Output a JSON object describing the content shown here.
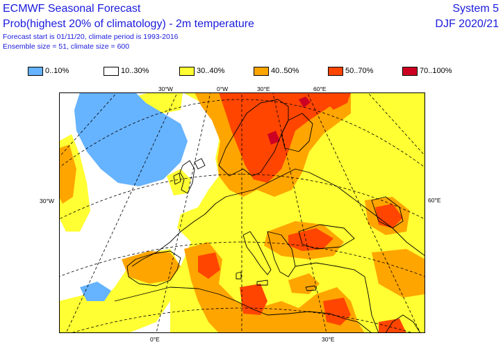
{
  "header": {
    "title": "ECMWF Seasonal Forecast",
    "subtitle": "Prob(highest 20% of climatology) - 2m temperature",
    "forecast_info": "Forecast start is 01/11/20, climate period is 1993-2016",
    "ensemble_info": "Ensemble size = 51, climate size = 600",
    "system": "System 5",
    "season": "DJF 2020/21"
  },
  "legend": [
    {
      "label": "0..10%",
      "color": "#66b3ff"
    },
    {
      "label": "10..30%",
      "color": "#ffffff"
    },
    {
      "label": "30..40%",
      "color": "#ffff33"
    },
    {
      "label": "40..50%",
      "color": "#ffa500"
    },
    {
      "label": "50..70%",
      "color": "#ff4500"
    },
    {
      "label": "70..100%",
      "color": "#cc0022"
    }
  ],
  "map": {
    "ticks": {
      "top": [
        "30°W",
        "0°W",
        "30°E",
        "60°E"
      ],
      "bottom": [
        "0°E",
        "30°E"
      ],
      "left": [
        "30°W"
      ],
      "right": [
        "60°E"
      ]
    }
  }
}
